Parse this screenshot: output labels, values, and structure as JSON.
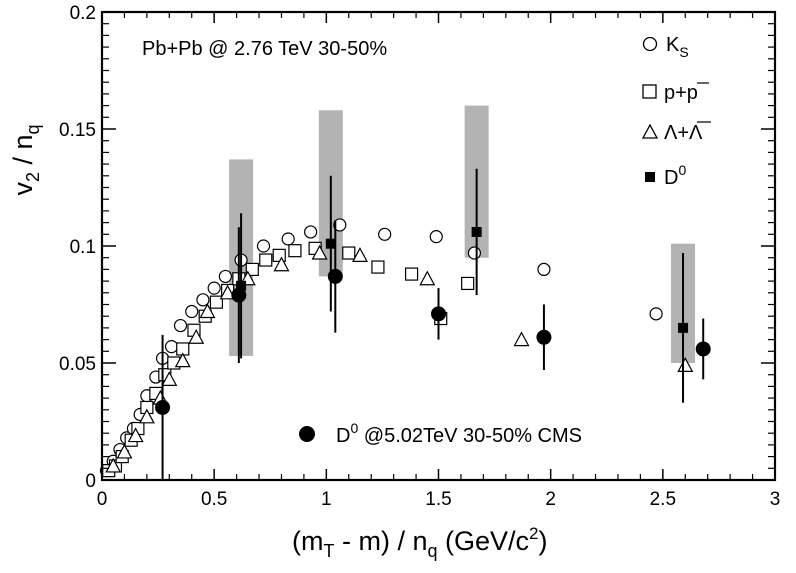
{
  "chart_data": {
    "type": "scatter",
    "title": "",
    "annotation": "Pb+Pb @ 2.76 TeV 30-50%",
    "xlabel": "(m_T - m) / n_q (GeV/c^2)",
    "ylabel": "v_2 / n_q",
    "xlim": [
      0,
      3
    ],
    "ylim": [
      0,
      0.2
    ],
    "x_ticks": [
      "0",
      "0.5",
      "1",
      "1.5",
      "2",
      "2.5",
      "3"
    ],
    "y_ticks": [
      "0",
      "0.05",
      "0.1",
      "0.15",
      "0.2"
    ],
    "grid": false,
    "legend_placement": "top-right",
    "series": [
      {
        "name": "K_S",
        "marker": "open-circle",
        "points": [
          [
            0.02,
            0.004
          ],
          [
            0.05,
            0.008
          ],
          [
            0.08,
            0.013
          ],
          [
            0.11,
            0.018
          ],
          [
            0.14,
            0.022
          ],
          [
            0.17,
            0.028
          ],
          [
            0.2,
            0.036
          ],
          [
            0.24,
            0.044
          ],
          [
            0.27,
            0.052
          ],
          [
            0.31,
            0.057
          ],
          [
            0.35,
            0.066
          ],
          [
            0.4,
            0.072
          ],
          [
            0.45,
            0.077
          ],
          [
            0.5,
            0.082
          ],
          [
            0.55,
            0.087
          ],
          [
            0.62,
            0.094
          ],
          [
            0.72,
            0.1
          ],
          [
            0.83,
            0.103
          ],
          [
            0.93,
            0.106
          ],
          [
            1.06,
            0.109
          ],
          [
            1.26,
            0.105
          ],
          [
            1.49,
            0.104
          ],
          [
            1.66,
            0.097
          ],
          [
            1.97,
            0.09
          ],
          [
            2.47,
            0.071
          ]
        ]
      },
      {
        "name": "p+p̄",
        "marker": "open-square",
        "points": [
          [
            0.03,
            0.004
          ],
          [
            0.06,
            0.006
          ],
          [
            0.09,
            0.01
          ],
          [
            0.13,
            0.017
          ],
          [
            0.16,
            0.022
          ],
          [
            0.2,
            0.031
          ],
          [
            0.24,
            0.037
          ],
          [
            0.28,
            0.045
          ],
          [
            0.32,
            0.05
          ],
          [
            0.36,
            0.056
          ],
          [
            0.41,
            0.064
          ],
          [
            0.46,
            0.07
          ],
          [
            0.51,
            0.076
          ],
          [
            0.56,
            0.081
          ],
          [
            0.61,
            0.086
          ],
          [
            0.67,
            0.09
          ],
          [
            0.73,
            0.094
          ],
          [
            0.79,
            0.096
          ],
          [
            0.86,
            0.098
          ],
          [
            0.95,
            0.099
          ],
          [
            1.1,
            0.097
          ],
          [
            1.23,
            0.091
          ],
          [
            1.38,
            0.088
          ],
          [
            1.51,
            0.069
          ],
          [
            1.63,
            0.084
          ]
        ]
      },
      {
        "name": "Λ+Λ̄",
        "marker": "open-triangle",
        "points": [
          [
            0.05,
            0.006
          ],
          [
            0.1,
            0.012
          ],
          [
            0.15,
            0.019
          ],
          [
            0.2,
            0.027
          ],
          [
            0.26,
            0.035
          ],
          [
            0.3,
            0.043
          ],
          [
            0.36,
            0.051
          ],
          [
            0.42,
            0.061
          ],
          [
            0.47,
            0.072
          ],
          [
            0.56,
            0.08
          ],
          [
            0.65,
            0.086
          ],
          [
            0.8,
            0.092
          ],
          [
            0.97,
            0.097
          ],
          [
            1.15,
            0.096
          ],
          [
            1.45,
            0.086
          ],
          [
            1.87,
            0.06
          ],
          [
            2.6,
            0.049
          ]
        ]
      },
      {
        "name": "D^0",
        "marker": "filled-square",
        "points": [
          [
            0.62,
            0.083,
            0.031
          ],
          [
            1.02,
            0.101,
            0.029
          ],
          [
            1.67,
            0.106,
            0.027
          ],
          [
            2.59,
            0.065,
            0.032
          ]
        ],
        "systematic_boxes": [
          [
            0.62,
            0.053,
            0.137
          ],
          [
            1.02,
            0.087,
            0.158
          ],
          [
            1.67,
            0.095,
            0.16
          ],
          [
            2.59,
            0.05,
            0.101
          ]
        ]
      },
      {
        "name": "D^0 @5.02TeV 30-50% CMS",
        "marker": "filled-circle",
        "points": [
          [
            0.27,
            0.031,
            0.031
          ],
          [
            0.61,
            0.079,
            0.029
          ],
          [
            1.04,
            0.087,
            0.024
          ],
          [
            1.5,
            0.071,
            0.011
          ],
          [
            1.97,
            0.061,
            0.014
          ],
          [
            2.68,
            0.056,
            0.013
          ]
        ]
      }
    ]
  }
}
